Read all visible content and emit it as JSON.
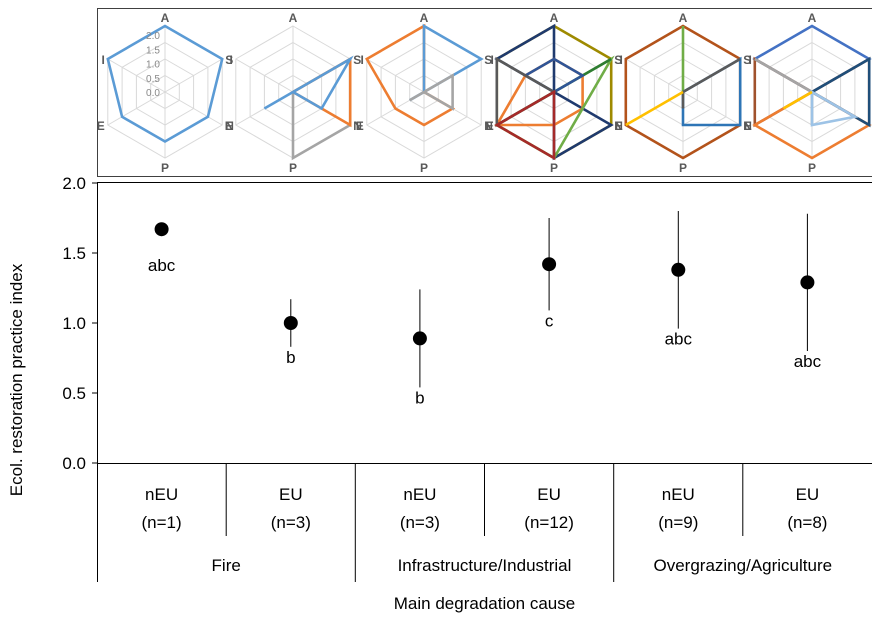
{
  "chart_data": {
    "type": "scatter",
    "ylabel": "Ecol. restoration  practice index",
    "xlabel": "Main degradation cause",
    "ylim": [
      0,
      2
    ],
    "yticks": [
      "0.0",
      "0.5",
      "1.0",
      "1.5",
      "2.0"
    ],
    "grid": false,
    "groups": [
      {
        "label": "Fire",
        "subgroups": [
          0,
          1
        ]
      },
      {
        "label": "Infrastructure/Industrial",
        "subgroups": [
          2,
          3
        ]
      },
      {
        "label": "Overgrazing/Agriculture",
        "subgroups": [
          4,
          5
        ]
      }
    ],
    "points": [
      {
        "region": "nEU",
        "n": "(n=1)",
        "mean": 1.67,
        "low": null,
        "high": null,
        "sig": "abc"
      },
      {
        "region": "EU",
        "n": "(n=3)",
        "mean": 1.0,
        "low": 0.83,
        "high": 1.17,
        "sig": "b"
      },
      {
        "region": "nEU",
        "n": "(n=3)",
        "mean": 0.89,
        "low": 0.54,
        "high": 1.24,
        "sig": "b"
      },
      {
        "region": "EU",
        "n": "(n=12)",
        "mean": 1.42,
        "low": 1.09,
        "high": 1.75,
        "sig": "c"
      },
      {
        "region": "nEU",
        "n": "(n=9)",
        "mean": 1.38,
        "low": 0.96,
        "high": 1.8,
        "sig": "abc"
      },
      {
        "region": "EU",
        "n": "(n=8)",
        "mean": 1.29,
        "low": 0.8,
        "high": 1.78,
        "sig": "abc"
      }
    ],
    "radar": {
      "axes": [
        "A",
        "S",
        "N",
        "P",
        "E",
        "I"
      ],
      "scale_ticks": [
        "2.0",
        "1.5",
        "1.0",
        "0.5",
        "0.0"
      ],
      "max": 2,
      "panels": [
        {
          "series": [
            {
              "color": "#5B9BD5",
              "values": [
                2,
                2,
                1.5,
                1.5,
                1.5,
                2
              ]
            }
          ]
        },
        {
          "series": [
            {
              "color": "#A5A5A5",
              "values": [
                0,
                2,
                2,
                2,
                0,
                0
              ]
            },
            {
              "color": "#ED7D31",
              "values": [
                0,
                2,
                2,
                0,
                0,
                0
              ]
            },
            {
              "color": "#5B9BD5",
              "values": [
                0,
                2,
                1,
                0,
                1,
                0
              ]
            }
          ]
        },
        {
          "series": [
            {
              "color": "#ED7D31",
              "values": [
                2,
                0,
                1,
                1,
                1,
                2
              ]
            },
            {
              "color": "#5B9BD5",
              "values": [
                2,
                2,
                0,
                0,
                0.5,
                0
              ]
            },
            {
              "color": "#A5A5A5",
              "values": [
                0,
                1,
                1,
                0,
                0.5,
                0
              ]
            }
          ]
        },
        {
          "series": [
            {
              "color": "#9E8A00",
              "values": [
                2,
                2,
                2,
                2,
                2,
                2
              ]
            },
            {
              "color": "#1F3A6E",
              "values": [
                2,
                0,
                2,
                2,
                0,
                2
              ]
            },
            {
              "color": "#ED7D31",
              "values": [
                1,
                1,
                1,
                1,
                2,
                1
              ]
            },
            {
              "color": "#70AD47",
              "values": [
                0,
                2,
                1,
                2,
                2,
                0
              ]
            },
            {
              "color": "#2E7D32",
              "values": [
                0,
                2,
                0,
                0,
                2,
                0
              ]
            },
            {
              "color": "#2F5597",
              "values": [
                1,
                1,
                0,
                0,
                0,
                1
              ]
            },
            {
              "color": "#595959",
              "values": [
                0,
                0,
                0,
                0,
                2,
                2
              ]
            },
            {
              "color": "#A52A2A",
              "values": [
                0,
                0,
                0,
                2,
                2,
                0
              ]
            }
          ]
        },
        {
          "series": [
            {
              "color": "#B3531B",
              "values": [
                2,
                2,
                2,
                2,
                2,
                2
              ]
            },
            {
              "color": "#2E75B6",
              "values": [
                0,
                2,
                2,
                1,
                0,
                0
              ]
            },
            {
              "color": "#70AD47",
              "values": [
                2,
                0,
                0,
                0,
                0,
                0
              ]
            },
            {
              "color": "#5A5A5A",
              "values": [
                0,
                2,
                0,
                0.5,
                0,
                0
              ]
            },
            {
              "color": "#FFC000",
              "values": [
                0,
                0,
                0,
                0,
                2,
                0
              ]
            }
          ]
        },
        {
          "series": [
            {
              "color": "#4472C4",
              "values": [
                2,
                2,
                0,
                0,
                0,
                2
              ]
            },
            {
              "color": "#A0522D",
              "values": [
                0,
                2,
                2,
                0,
                2,
                2
              ]
            },
            {
              "color": "#ED7D31",
              "values": [
                0,
                0,
                2,
                2,
                2,
                0
              ]
            },
            {
              "color": "#1F4E79",
              "values": [
                0,
                2,
                2,
                0,
                0,
                0
              ]
            },
            {
              "color": "#A5A5A5",
              "values": [
                0,
                0,
                0,
                1,
                0,
                2
              ]
            },
            {
              "color": "#9DC3E6",
              "values": [
                0,
                0,
                1.5,
                1,
                0,
                0
              ]
            },
            {
              "color": "#FFC000",
              "values": [
                0,
                0,
                0,
                0,
                1,
                0
              ]
            }
          ]
        }
      ]
    }
  }
}
